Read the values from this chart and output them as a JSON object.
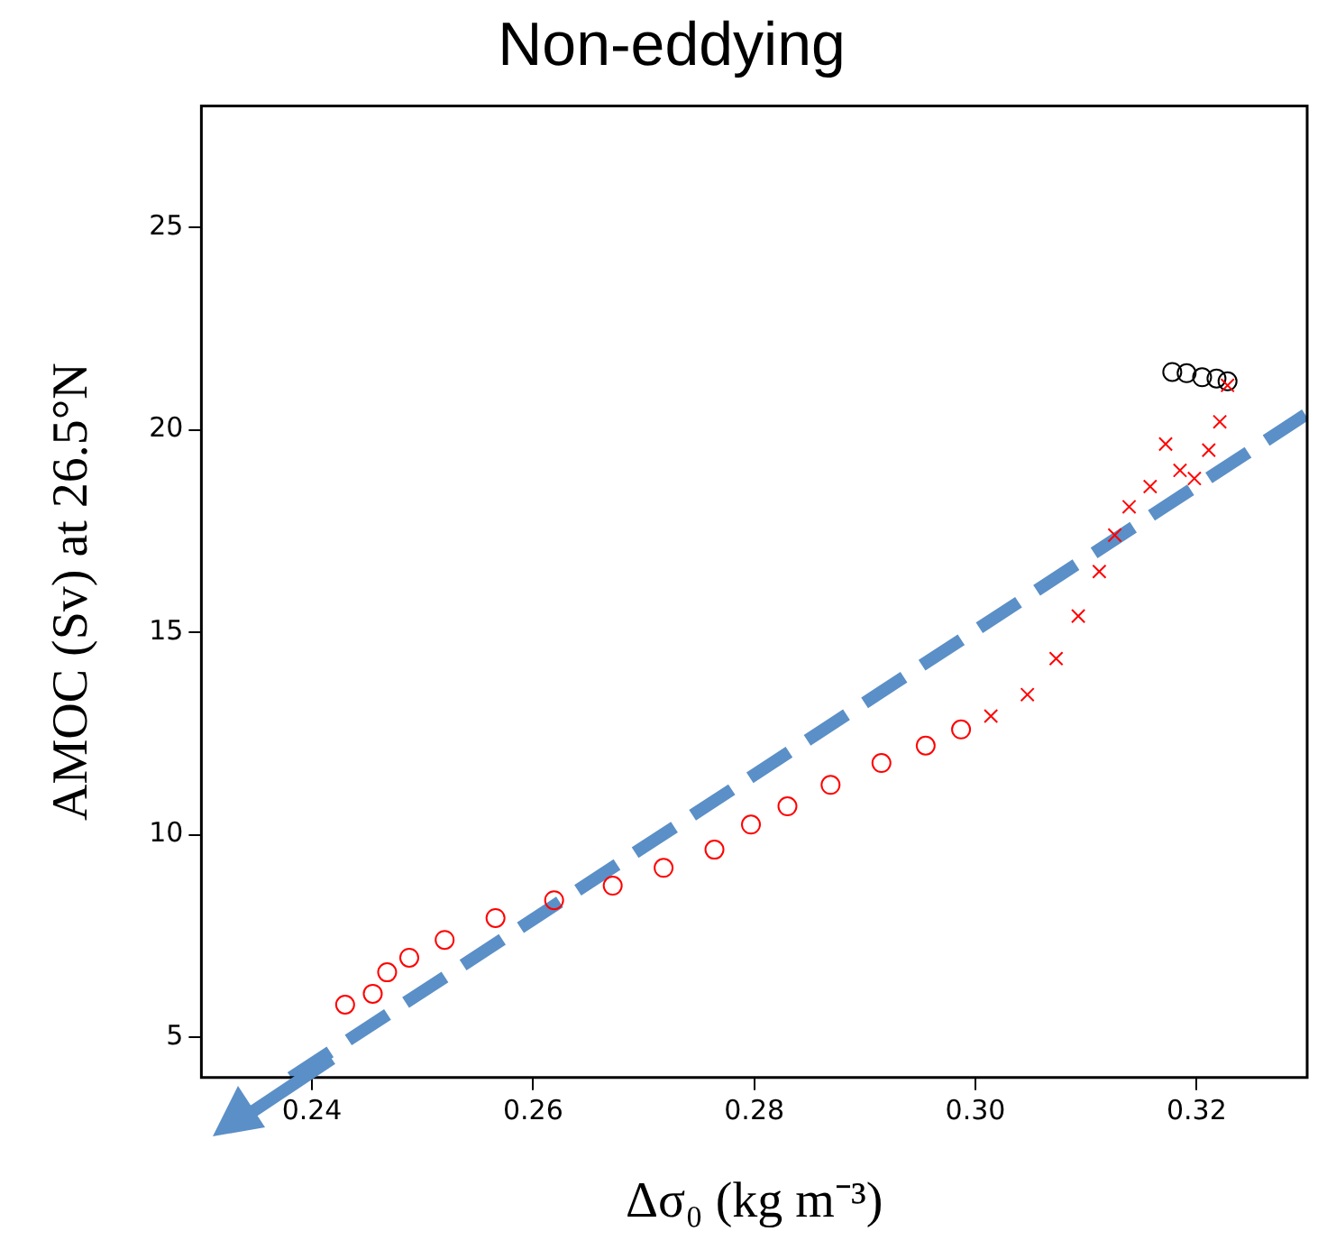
{
  "chart_data": {
    "type": "scatter",
    "title": "Non-eddying",
    "xlabel": "Δσ₀ (kg m⁻³)",
    "ylabel": "AMOC (Sv) at 26.5°N",
    "xlim": [
      0.23,
      0.33
    ],
    "xticks": [
      {
        "value": 0.24,
        "label": "0.24"
      },
      {
        "value": 0.26,
        "label": "0.26"
      },
      {
        "value": 0.28,
        "label": "0.28"
      },
      {
        "value": 0.3,
        "label": "0.30"
      },
      {
        "value": 0.32,
        "label": "0.32"
      }
    ],
    "ylim": [
      4,
      28
    ],
    "yticks": [
      5,
      10,
      15,
      20,
      25
    ],
    "grid": false,
    "legend": false,
    "series": [
      {
        "color": "#ff0000",
        "marker": "circle",
        "x": [
          0.243,
          0.2455,
          0.2468,
          0.2488,
          0.252,
          0.2566,
          0.2619,
          0.2672,
          0.2718,
          0.2764,
          0.2797,
          0.283,
          0.2869,
          0.2915,
          0.2955,
          0.2987
        ],
        "values": [
          5.8,
          6.07,
          6.6,
          6.96,
          7.4,
          7.94,
          8.38,
          8.74,
          9.18,
          9.63,
          10.25,
          10.7,
          11.23,
          11.77,
          12.2,
          12.6
        ]
      },
      {
        "color": "#ff0000",
        "marker": "cross",
        "x": [
          0.3014,
          0.3047,
          0.3073,
          0.3093,
          0.3112,
          0.3126,
          0.3139,
          0.3158,
          0.3172,
          0.3185,
          0.3198,
          0.3211,
          0.3221,
          0.3228
        ],
        "values": [
          12.93,
          13.46,
          14.35,
          15.4,
          16.5,
          17.4,
          18.1,
          18.6,
          19.65,
          19.0,
          18.8,
          19.5,
          20.2,
          21.1
        ]
      },
      {
        "color": "#000000",
        "marker": "circle",
        "x": [
          0.3178,
          0.3191,
          0.3205,
          0.3218,
          0.3228
        ],
        "values": [
          21.43,
          21.4,
          21.3,
          21.27,
          21.2
        ]
      },
      {
        "type": "line",
        "color": "#5b8fc7",
        "marker": "none",
        "line_style": "dashed",
        "x": [
          0.2381,
          0.33
        ],
        "values": [
          4,
          20.4
        ]
      }
    ]
  }
}
